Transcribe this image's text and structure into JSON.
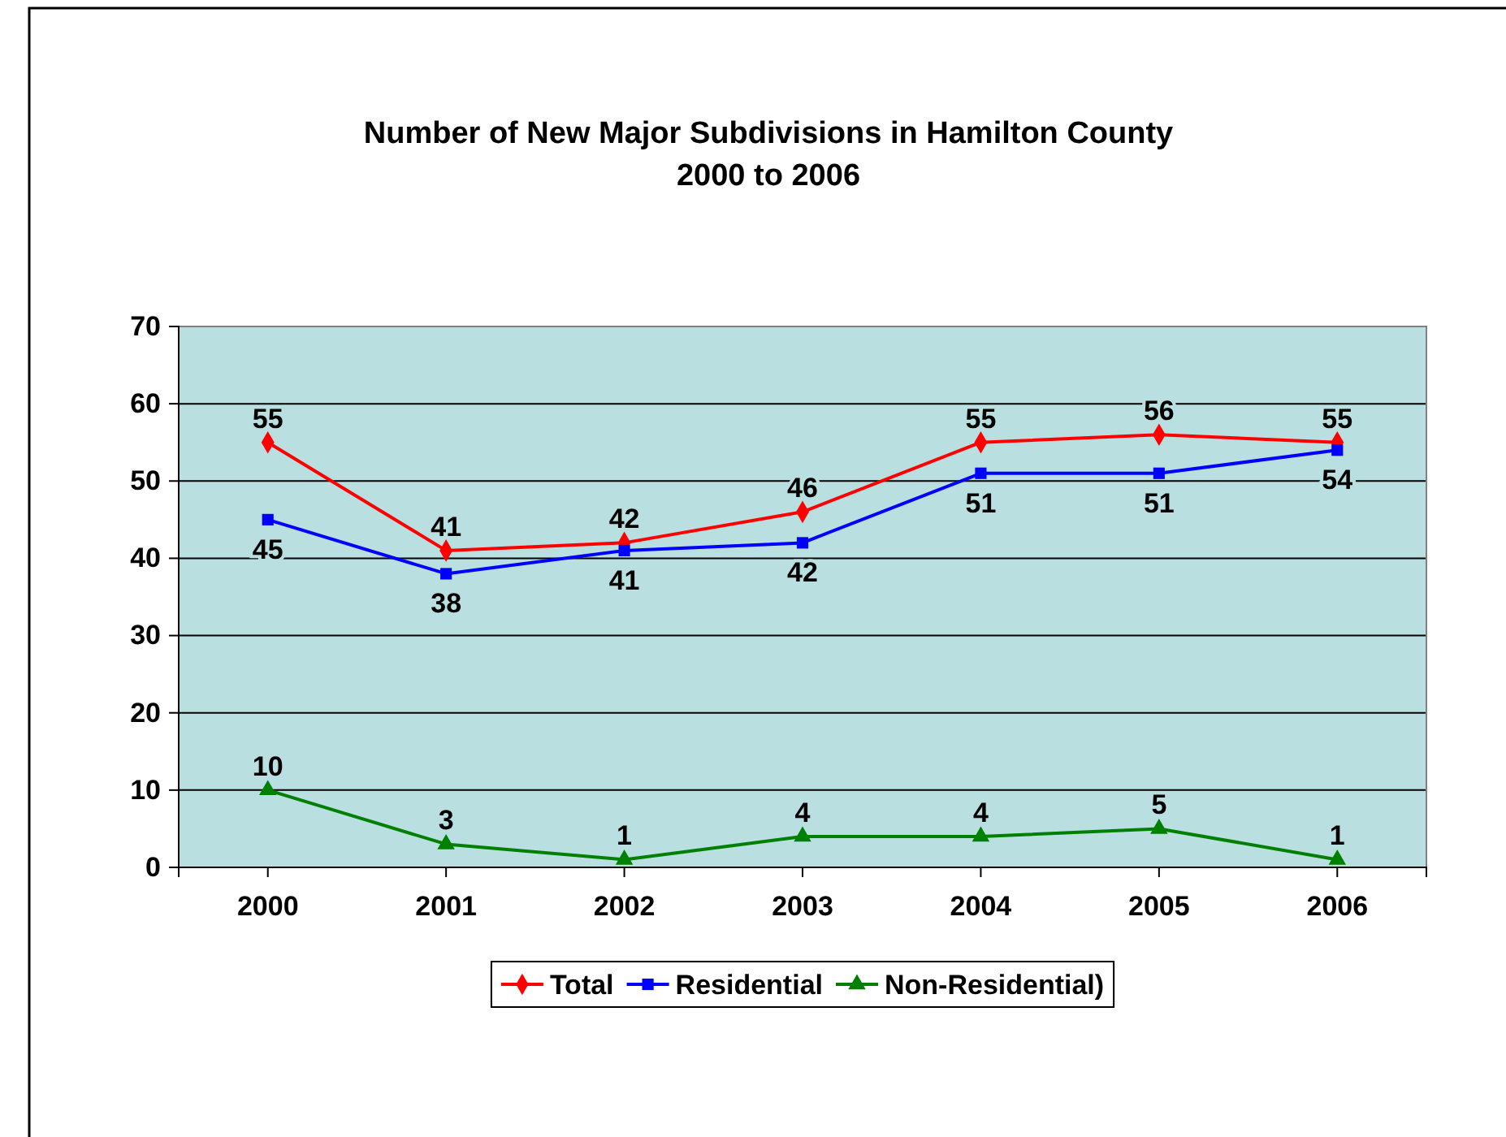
{
  "chart_data": {
    "type": "line",
    "title": "Number of New Major Subdivisions in Hamilton County\n2000 to 2006",
    "categories": [
      "2000",
      "2001",
      "2002",
      "2003",
      "2004",
      "2005",
      "2006"
    ],
    "series": [
      {
        "name": "Total",
        "color": "#ff0000",
        "marker": "diamond",
        "values": [
          55,
          41,
          42,
          46,
          55,
          56,
          55
        ]
      },
      {
        "name": "Residential",
        "color": "#0000ff",
        "marker": "square",
        "values": [
          45,
          38,
          41,
          42,
          51,
          51,
          54
        ]
      },
      {
        "name": "Non-Residential)",
        "color": "#008000",
        "marker": "triangle",
        "values": [
          10,
          3,
          1,
          4,
          4,
          5,
          1
        ]
      }
    ],
    "ylim": [
      0,
      70
    ],
    "yticks": [
      0,
      10,
      20,
      30,
      40,
      50,
      60,
      70
    ],
    "grid": "y",
    "legend": "bottom",
    "data_labels": true,
    "line_style": "solid"
  }
}
